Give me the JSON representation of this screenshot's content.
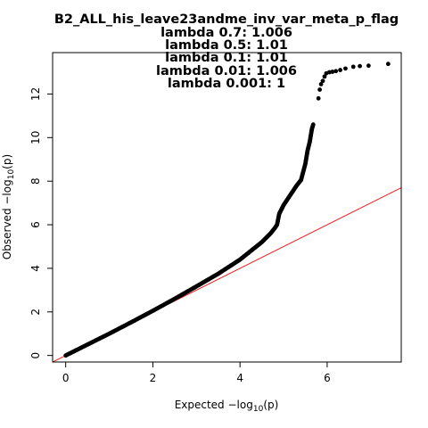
{
  "chart_data": {
    "type": "scatter",
    "title": "B2_ALL_his_leave23andme_inv_var_meta_p_flag",
    "subtitle_lines": [
      "lambda 0.7: 1.006",
      "lambda 0.5: 1.01",
      "lambda 0.1: 1.01",
      "lambda 0.01: 1.006",
      "lambda 0.001: 1"
    ],
    "xlabel": {
      "prefix": "Expected  ",
      "main": "−log",
      "sub": "10",
      "suffix": "(p)"
    },
    "ylabel": {
      "prefix": "Observed  ",
      "main": "−log",
      "sub": "10",
      "suffix": "(p)"
    },
    "xlim": [
      -0.3,
      7.7
    ],
    "ylim": [
      -0.3,
      13.9
    ],
    "x_ticks": [
      0,
      2,
      4,
      6
    ],
    "y_ticks": [
      0,
      2,
      4,
      6,
      8,
      10,
      12
    ],
    "grid": false,
    "reference_line": {
      "slope": 1,
      "intercept": 0,
      "color": "#ff0000"
    },
    "point_color": "#000000",
    "points_curve": [
      [
        0,
        0
      ],
      [
        0.5,
        0.5
      ],
      [
        1,
        1.0
      ],
      [
        1.5,
        1.52
      ],
      [
        2,
        2.05
      ],
      [
        2.5,
        2.6
      ],
      [
        3,
        3.17
      ],
      [
        3.5,
        3.75
      ],
      [
        4,
        4.4
      ],
      [
        4.5,
        5.2
      ],
      [
        4.7,
        5.6
      ],
      [
        4.8,
        5.85
      ],
      [
        4.85,
        6.0
      ],
      [
        4.9,
        6.5
      ],
      [
        5.0,
        6.9
      ],
      [
        5.1,
        7.2
      ],
      [
        5.2,
        7.5
      ],
      [
        5.3,
        7.8
      ],
      [
        5.4,
        8.05
      ],
      [
        5.5,
        8.8
      ],
      [
        5.55,
        9.4
      ],
      [
        5.6,
        9.8
      ],
      [
        5.65,
        10.4
      ],
      [
        5.68,
        10.6
      ]
    ],
    "points_tail": [
      [
        5.8,
        11.8
      ],
      [
        5.83,
        12.2
      ],
      [
        5.86,
        12.45
      ],
      [
        5.9,
        12.6
      ],
      [
        5.94,
        12.8
      ],
      [
        5.98,
        12.95
      ],
      [
        6.05,
        13.0
      ],
      [
        6.12,
        13.02
      ],
      [
        6.2,
        13.05
      ],
      [
        6.3,
        13.1
      ],
      [
        6.42,
        13.17
      ],
      [
        6.6,
        13.25
      ],
      [
        6.75,
        13.28
      ],
      [
        6.95,
        13.3
      ],
      [
        7.4,
        13.38
      ]
    ]
  }
}
